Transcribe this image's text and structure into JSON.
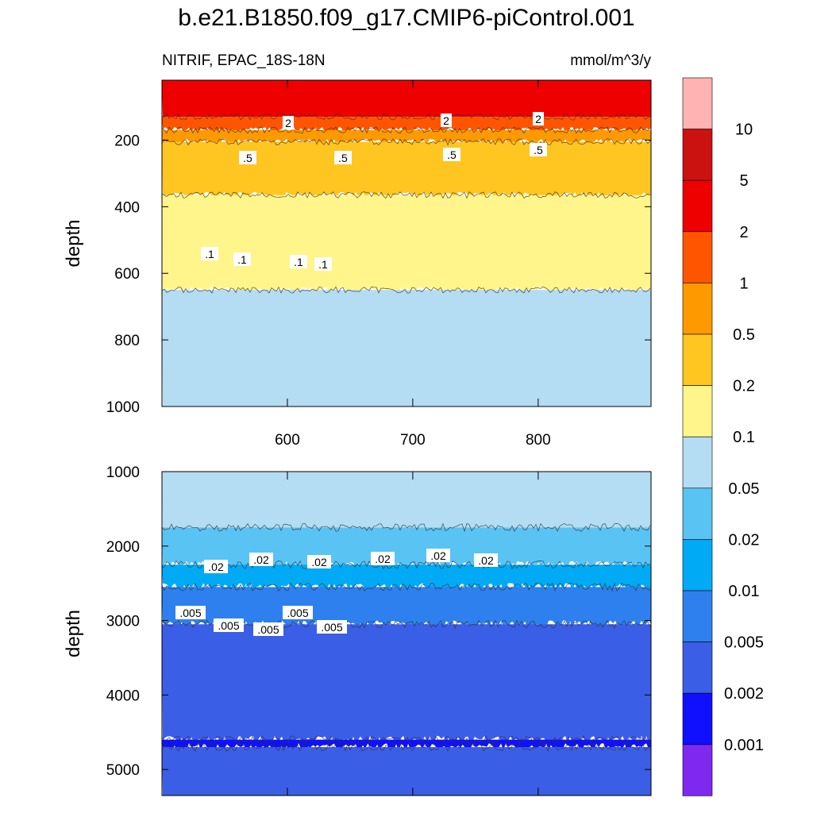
{
  "title": "b.e21.B1850.f09_g17.CMIP6-piControl.001",
  "subtitle_left": "NITRIF, EPAC_18S-18N",
  "subtitle_right": "mmol/m^3/y",
  "chart_data": [
    {
      "type": "contour",
      "panel": "upper",
      "ylabel": "depth",
      "xlabel": "",
      "xlim": [
        500,
        890
      ],
      "ylim": [
        1000,
        20
      ],
      "y_reversed": true,
      "x_ticks": [
        600,
        700,
        800
      ],
      "y_ticks": [
        200,
        400,
        600,
        800,
        1000
      ],
      "contour_labels": [
        "2",
        "2",
        "2",
        ".5",
        ".5",
        ".5",
        ".5",
        ".1",
        ".1",
        ".1",
        ".1"
      ],
      "filled_bands_top_to_bottom": [
        {
          "range": "2-5",
          "depth_from": 20,
          "depth_to": 130
        },
        {
          "range": "1-2",
          "depth_from": 130,
          "depth_to": 170
        },
        {
          "range": "0.5-1",
          "depth_from": 170,
          "depth_to": 205
        },
        {
          "range": "0.2-0.5",
          "depth_from": 205,
          "depth_to": 365
        },
        {
          "range": "0.1-0.2",
          "depth_from": 365,
          "depth_to": 650
        },
        {
          "range": "0.05-0.1",
          "depth_from": 650,
          "depth_to": 1000
        }
      ]
    },
    {
      "type": "contour",
      "panel": "lower",
      "ylabel": "depth",
      "xlabel": "",
      "xlim": [
        500,
        890
      ],
      "ylim": [
        5350,
        1000
      ],
      "y_reversed": true,
      "y_ticks": [
        1000,
        2000,
        3000,
        4000,
        5000
      ],
      "contour_labels": [
        ".02",
        ".02",
        ".02",
        ".02",
        ".02",
        ".02",
        ".005",
        ".005",
        ".005",
        ".005",
        ".005"
      ],
      "filled_bands_top_to_bottom": [
        {
          "range": "0.05-0.1",
          "depth_from": 1000,
          "depth_to": 1750
        },
        {
          "range": "0.02-0.05",
          "depth_from": 1750,
          "depth_to": 2250
        },
        {
          "range": "0.01-0.02",
          "depth_from": 2250,
          "depth_to": 2550
        },
        {
          "range": "0.005-0.01",
          "depth_from": 2550,
          "depth_to": 3050
        },
        {
          "range": "0.002-0.005",
          "depth_from": 3050,
          "depth_to": 4600
        },
        {
          "range": "0.001-0.002",
          "depth_from": 4600,
          "depth_to": 4700
        },
        {
          "range": "0.002-0.005",
          "depth_from": 4700,
          "depth_to": 5350
        }
      ]
    }
  ],
  "colorbar": {
    "labels": [
      "10",
      "5",
      "2",
      "1",
      "0.5",
      "0.2",
      "0.1",
      "0.05",
      "0.02",
      "0.01",
      "0.005",
      "0.002",
      "0.001"
    ],
    "colors": [
      "#ffb3b3",
      "#cc1111",
      "#ee0000",
      "#ff5500",
      "#ff9900",
      "#ffc520",
      "#fff58a",
      "#b4dcf2",
      "#59c3f3",
      "#00aaf5",
      "#2d80ee",
      "#3b5ee6",
      "#1010ff",
      "#7f28f0"
    ]
  }
}
